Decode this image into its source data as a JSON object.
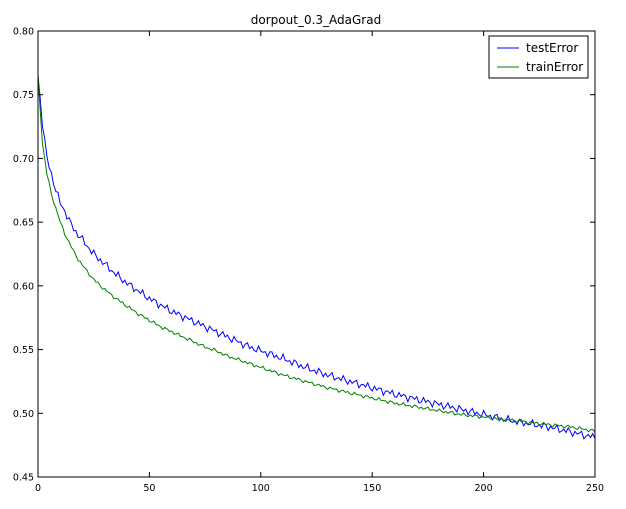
{
  "chart_data": {
    "type": "line",
    "title": "dorpout_0.3_AdaGrad",
    "xlabel": "",
    "ylabel": "",
    "xlim": [
      0,
      250
    ],
    "ylim": [
      0.45,
      0.8
    ],
    "xticks": [
      0,
      50,
      100,
      150,
      200,
      250
    ],
    "xtick_labels": [
      "0",
      "50",
      "100",
      "150",
      "200",
      "250"
    ],
    "yticks": [
      0.45,
      0.5,
      0.55,
      0.6,
      0.65,
      0.7,
      0.75,
      0.8
    ],
    "ytick_labels": [
      "0.45",
      "0.50",
      "0.55",
      "0.60",
      "0.65",
      "0.70",
      "0.75",
      "0.80"
    ],
    "grid": false,
    "legend_position": "top-right",
    "series": [
      {
        "name": "testError",
        "color": "#0000ff",
        "x": [
          0,
          2,
          4,
          6,
          8,
          10,
          12,
          14,
          16,
          18,
          20,
          25,
          30,
          35,
          40,
          45,
          50,
          55,
          60,
          65,
          70,
          75,
          80,
          85,
          90,
          95,
          100,
          110,
          120,
          130,
          140,
          150,
          160,
          170,
          180,
          190,
          200,
          210,
          220,
          230,
          240,
          250
        ],
        "y": [
          0.765,
          0.728,
          0.7,
          0.688,
          0.675,
          0.665,
          0.659,
          0.651,
          0.645,
          0.64,
          0.636,
          0.625,
          0.617,
          0.609,
          0.602,
          0.596,
          0.59,
          0.585,
          0.58,
          0.576,
          0.572,
          0.568,
          0.564,
          0.56,
          0.556,
          0.552,
          0.549,
          0.543,
          0.536,
          0.53,
          0.525,
          0.52,
          0.515,
          0.511,
          0.507,
          0.503,
          0.499,
          0.495,
          0.492,
          0.489,
          0.485,
          0.481
        ]
      },
      {
        "name": "trainError",
        "color": "#008000",
        "x": [
          0,
          2,
          4,
          6,
          8,
          10,
          12,
          14,
          16,
          18,
          20,
          25,
          30,
          35,
          40,
          45,
          50,
          55,
          60,
          65,
          70,
          75,
          80,
          85,
          90,
          95,
          100,
          110,
          120,
          130,
          140,
          150,
          160,
          170,
          180,
          190,
          200,
          210,
          220,
          230,
          240,
          250
        ],
        "y": [
          0.765,
          0.712,
          0.688,
          0.672,
          0.661,
          0.65,
          0.641,
          0.634,
          0.627,
          0.621,
          0.616,
          0.605,
          0.597,
          0.59,
          0.584,
          0.578,
          0.573,
          0.568,
          0.564,
          0.56,
          0.556,
          0.552,
          0.549,
          0.545,
          0.542,
          0.539,
          0.536,
          0.53,
          0.525,
          0.52,
          0.516,
          0.512,
          0.508,
          0.505,
          0.502,
          0.499,
          0.497,
          0.495,
          0.493,
          0.491,
          0.489,
          0.486
        ]
      }
    ]
  }
}
